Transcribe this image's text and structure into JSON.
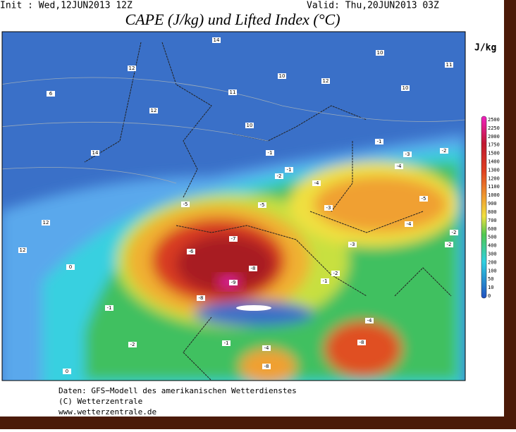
{
  "header": {
    "init": "Init : Wed,12JUN2013 12Z",
    "valid": "Valid: Thu,20JUN2013 03Z",
    "title": "CAPE (J/kg) und Lifted Index (°C)"
  },
  "colorbar": {
    "unit": "J/kg",
    "labels": [
      2500,
      2250,
      2000,
      1750,
      1500,
      1400,
      1300,
      1200,
      1100,
      1000,
      900,
      800,
      700,
      600,
      500,
      400,
      300,
      200,
      100,
      50,
      10,
      0
    ]
  },
  "map_labels": [
    14,
    12,
    6,
    12,
    11,
    10,
    12,
    10,
    11,
    10,
    10,
    14,
    12,
    12,
    -1,
    -1,
    -2,
    -4,
    -1,
    -3,
    -2,
    -4,
    -5,
    -5,
    -3,
    -5,
    -4,
    -6,
    -7,
    -8,
    -9,
    -3,
    -2,
    -1,
    0,
    -1,
    -8,
    -4,
    -8,
    -4,
    -8,
    -1,
    -2,
    0,
    -2,
    -2
  ],
  "footer": [
    "Daten: GFS−Modell des amerikanischen Wetterdienstes",
    "(C) Wetterzentrale",
    "www.wetterzentrale.de"
  ]
}
